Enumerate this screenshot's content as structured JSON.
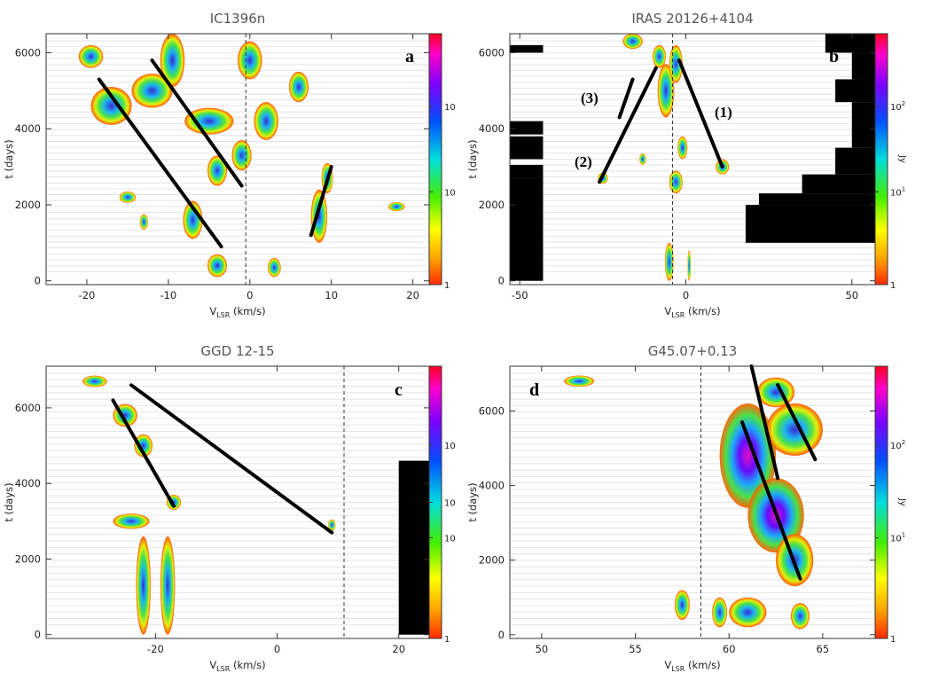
{
  "chart_data": [
    {
      "type": "heatmap",
      "panel_label": "a",
      "title": "IC1396n",
      "xlabel_main": "V",
      "xlabel_sub": "LSR",
      "xlabel_unit": " (km/s)",
      "ylabel": "t (days)",
      "x_ticks": [
        -20,
        -10,
        0,
        10,
        20
      ],
      "y_ticks": [
        0,
        2000,
        4000,
        6000
      ],
      "xlim": [
        -25,
        22
      ],
      "ylim": [
        -100,
        6500
      ],
      "reference_velocity": -0.5,
      "colorbar_ticks": [
        "1",
        "10",
        "10"
      ],
      "colorbar_unit": "",
      "emission_blobs": [
        {
          "v": -4,
          "t": 400,
          "dv": 1.2,
          "dt": 300
        },
        {
          "v": 3,
          "t": 350,
          "dv": 0.8,
          "dt": 250
        },
        {
          "v": -7,
          "t": 1600,
          "dv": 1.2,
          "dt": 500
        },
        {
          "v": 8.5,
          "t": 1700,
          "dv": 1.0,
          "dt": 700
        },
        {
          "v": 9.5,
          "t": 2700,
          "dv": 0.7,
          "dt": 400
        },
        {
          "v": -9.5,
          "t": 5800,
          "dv": 1.5,
          "dt": 700
        },
        {
          "v": -12,
          "t": 5000,
          "dv": 2.5,
          "dt": 450
        },
        {
          "v": -17,
          "t": 4600,
          "dv": 2.5,
          "dt": 500
        },
        {
          "v": -19.5,
          "t": 5900,
          "dv": 1.5,
          "dt": 300
        },
        {
          "v": -5,
          "t": 4200,
          "dv": 3,
          "dt": 350
        },
        {
          "v": 0,
          "t": 5800,
          "dv": 1.5,
          "dt": 500
        },
        {
          "v": 2,
          "t": 4200,
          "dv": 1.5,
          "dt": 500
        },
        {
          "v": 6,
          "t": 5100,
          "dv": 1.2,
          "dt": 400
        },
        {
          "v": -1,
          "t": 3300,
          "dv": 1.2,
          "dt": 400
        },
        {
          "v": -4,
          "t": 2900,
          "dv": 1.2,
          "dt": 400
        },
        {
          "v": 18,
          "t": 1950,
          "dv": 1.0,
          "dt": 120
        },
        {
          "v": -15,
          "t": 2200,
          "dv": 1.0,
          "dt": 150
        },
        {
          "v": -13,
          "t": 1550,
          "dv": 0.5,
          "dt": 200
        }
      ],
      "traces": [
        {
          "label": "",
          "v": [
            -18.5,
            -3.5
          ],
          "t": [
            5300,
            900
          ]
        },
        {
          "label": "",
          "v": [
            -12,
            -1
          ],
          "t": [
            5800,
            2500
          ]
        },
        {
          "label": "",
          "v": [
            7.5,
            10
          ],
          "t": [
            1200,
            3000
          ]
        }
      ]
    },
    {
      "type": "heatmap",
      "panel_label": "b",
      "title": "IRAS 20126+4104",
      "xlabel_main": "V",
      "xlabel_sub": "LSR",
      "xlabel_unit": " (km/s)",
      "ylabel": "t (days)",
      "x_ticks": [
        -50,
        0,
        50
      ],
      "y_ticks": [
        0,
        2000,
        4000,
        6000
      ],
      "xlim": [
        -53,
        57
      ],
      "ylim": [
        -100,
        6500
      ],
      "reference_velocity": -4,
      "colorbar_ticks": [
        "1",
        "10",
        "10",
        "Jy"
      ],
      "colorbar_exponents": [
        "",
        "1",
        "2",
        ""
      ],
      "colorbar_unit": "Jy",
      "emission_blobs": [
        {
          "v": -5,
          "t": 500,
          "dv": 1.3,
          "dt": 500
        },
        {
          "v": 1,
          "t": 400,
          "dv": 0.5,
          "dt": 400
        },
        {
          "v": -6,
          "t": 5000,
          "dv": 2.5,
          "dt": 700
        },
        {
          "v": -8,
          "t": 5900,
          "dv": 2,
          "dt": 300
        },
        {
          "v": -3,
          "t": 5700,
          "dv": 2,
          "dt": 500
        },
        {
          "v": -16,
          "t": 6300,
          "dv": 3,
          "dt": 200
        },
        {
          "v": -25,
          "t": 2700,
          "dv": 1.5,
          "dt": 150
        },
        {
          "v": 11,
          "t": 3000,
          "dv": 2,
          "dt": 200
        },
        {
          "v": -3,
          "t": 2600,
          "dv": 2,
          "dt": 300
        },
        {
          "v": -1,
          "t": 3500,
          "dv": 1.5,
          "dt": 300
        },
        {
          "v": -13,
          "t": 3200,
          "dv": 1,
          "dt": 150
        }
      ],
      "absorption_left": [
        [
          -53,
          0,
          1300
        ],
        [
          -53,
          1300,
          2700
        ],
        [
          -53,
          2700,
          3050
        ],
        [
          -53,
          3200,
          3800
        ],
        [
          -53,
          3850,
          4200
        ],
        [
          -53,
          6000,
          6200
        ]
      ],
      "absorption_right": [
        [
          18,
          1000,
          2000
        ],
        [
          22,
          2000,
          2300
        ],
        [
          35,
          2300,
          2800
        ],
        [
          45,
          2800,
          3500
        ],
        [
          50,
          3500,
          4700
        ],
        [
          45,
          4700,
          5300
        ],
        [
          50,
          5300,
          6000
        ],
        [
          42,
          6000,
          6500
        ]
      ],
      "traces": [
        {
          "label": "(1)",
          "v": [
            -2,
            11
          ],
          "t": [
            5800,
            3000
          ]
        },
        {
          "label": "(2)",
          "v": [
            -26,
            -9
          ],
          "t": [
            2600,
            5600
          ]
        },
        {
          "label": "(3)",
          "v": [
            -20,
            -16
          ],
          "t": [
            4300,
            5300
          ]
        }
      ]
    },
    {
      "type": "heatmap",
      "panel_label": "c",
      "title": "GGD 12-15",
      "xlabel_main": "V",
      "xlabel_sub": "LSR",
      "xlabel_unit": " (km/s)",
      "ylabel": "t (days)",
      "x_ticks": [
        -20,
        0,
        20
      ],
      "y_ticks": [
        0,
        2000,
        4000,
        6000
      ],
      "xlim": [
        -38,
        25
      ],
      "ylim": [
        -100,
        7100
      ],
      "reference_velocity": 11,
      "colorbar_ticks": [
        "1",
        "10",
        "10",
        "10"
      ],
      "colorbar_unit": "",
      "emission_blobs": [
        {
          "v": -22,
          "t": 1300,
          "dv": 1.2,
          "dt": 1300
        },
        {
          "v": -18,
          "t": 1300,
          "dv": 1.2,
          "dt": 1300
        },
        {
          "v": -22,
          "t": 5000,
          "dv": 1.5,
          "dt": 300
        },
        {
          "v": -25,
          "t": 5800,
          "dv": 2,
          "dt": 300
        },
        {
          "v": -17,
          "t": 3500,
          "dv": 1.2,
          "dt": 200
        },
        {
          "v": -24,
          "t": 3000,
          "dv": 3,
          "dt": 200
        },
        {
          "v": -30,
          "t": 6700,
          "dv": 2,
          "dt": 150
        },
        {
          "v": 9,
          "t": 2900,
          "dv": 0.6,
          "dt": 150
        }
      ],
      "absorption_right": [
        [
          20,
          0,
          4600
        ]
      ],
      "traces": [
        {
          "label": "",
          "v": [
            -27,
            -17
          ],
          "t": [
            6200,
            3400
          ]
        },
        {
          "label": "",
          "v": [
            -24,
            9
          ],
          "t": [
            6600,
            2700
          ]
        }
      ]
    },
    {
      "type": "heatmap",
      "panel_label": "d",
      "title": "G45.07+0.13",
      "xlabel_main": "V",
      "xlabel_sub": "LSR",
      "xlabel_unit": " (km/s)",
      "ylabel": "t (days)",
      "x_ticks": [
        50,
        55,
        60,
        65
      ],
      "y_ticks": [
        0,
        2000,
        4000,
        6000
      ],
      "xlim": [
        48.3,
        67.8
      ],
      "ylim": [
        -100,
        7200
      ],
      "reference_velocity": 58.5,
      "colorbar_ticks": [
        "1",
        "10",
        "10",
        "Jy"
      ],
      "colorbar_exponents": [
        "",
        "1",
        "2",
        ""
      ],
      "colorbar_unit": "Jy",
      "emission_blobs": [
        {
          "v": 61,
          "t": 4800,
          "dv": 1.5,
          "dt": 1400
        },
        {
          "v": 62.5,
          "t": 3200,
          "dv": 1.5,
          "dt": 1000
        },
        {
          "v": 63.5,
          "t": 2000,
          "dv": 1,
          "dt": 700
        },
        {
          "v": 63.5,
          "t": 5500,
          "dv": 1.5,
          "dt": 700
        },
        {
          "v": 62.5,
          "t": 6500,
          "dv": 1.0,
          "dt": 400
        },
        {
          "v": 61,
          "t": 600,
          "dv": 1.0,
          "dt": 400
        },
        {
          "v": 59.5,
          "t": 600,
          "dv": 0.4,
          "dt": 400
        },
        {
          "v": 63.8,
          "t": 500,
          "dv": 0.5,
          "dt": 350
        },
        {
          "v": 57.5,
          "t": 800,
          "dv": 0.4,
          "dt": 400
        },
        {
          "v": 52,
          "t": 6800,
          "dv": 0.8,
          "dt": 150
        }
      ],
      "traces": [
        {
          "label": "",
          "v": [
            60.7,
            63.8
          ],
          "t": [
            5700,
            1500
          ]
        },
        {
          "label": "",
          "v": [
            61.2,
            62.6
          ],
          "t": [
            7200,
            4200
          ]
        },
        {
          "label": "",
          "v": [
            62.6,
            64.6
          ],
          "t": [
            6700,
            4700
          ]
        }
      ]
    }
  ]
}
